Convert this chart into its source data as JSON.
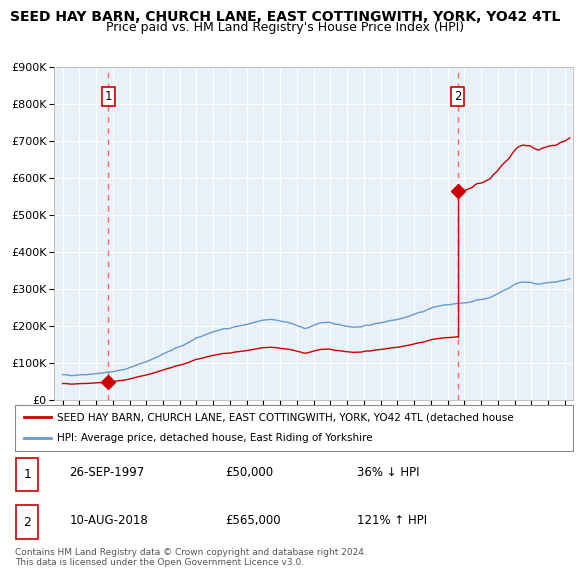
{
  "title": "SEED HAY BARN, CHURCH LANE, EAST COTTINGWITH, YORK, YO42 4TL",
  "subtitle": "Price paid vs. HM Land Registry's House Price Index (HPI)",
  "legend_line1": "SEED HAY BARN, CHURCH LANE, EAST COTTINGWITH, YORK, YO42 4TL (detached house",
  "legend_line2": "HPI: Average price, detached house, East Riding of Yorkshire",
  "footnote": "Contains HM Land Registry data © Crown copyright and database right 2024.\nThis data is licensed under the Open Government Licence v3.0.",
  "sale1_date": 1997.73,
  "sale1_price": 50000,
  "sale1_label": "1",
  "sale2_date": 2018.6,
  "sale2_price": 565000,
  "sale2_label": "2",
  "table_rows": [
    {
      "label": "1",
      "date": "26-SEP-1997",
      "price": "£50,000",
      "hpi": "36% ↓ HPI"
    },
    {
      "label": "2",
      "date": "10-AUG-2018",
      "price": "£565,000",
      "hpi": "121% ↑ HPI"
    }
  ],
  "hpi_color": "#6699cc",
  "price_color": "#cc0000",
  "sale_marker_color": "#cc0000",
  "dashed_line_color": "#ff6666",
  "ylim": [
    0,
    900000
  ],
  "xlim": [
    1994.5,
    2025.5
  ],
  "background_color": "#ffffff",
  "plot_bg_color": "#e8f0f8",
  "grid_color": "#ffffff",
  "title_fontsize": 10,
  "subtitle_fontsize": 9
}
